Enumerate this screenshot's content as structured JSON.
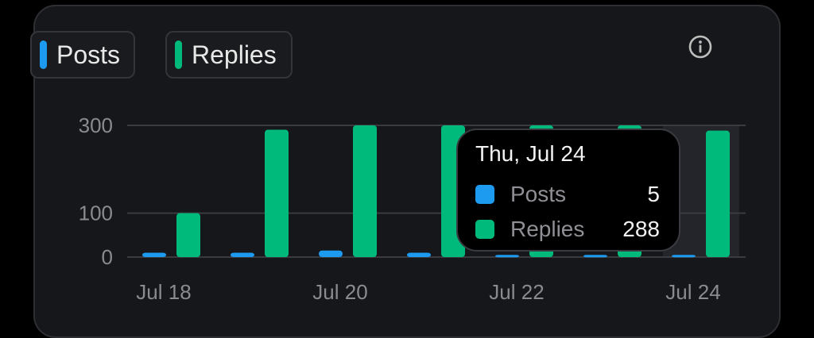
{
  "legend": {
    "posts_label": "Posts",
    "replies_label": "Replies"
  },
  "icons": {
    "info": "info-icon"
  },
  "colors": {
    "posts": "#1d9bf0",
    "replies": "#00ba7c",
    "grid": "#3a3b40",
    "axis_text": "#8a8b90"
  },
  "tooltip": {
    "title": "Thu, Jul 24",
    "posts_label": "Posts",
    "posts_value": "5",
    "replies_label": "Replies",
    "replies_value": "288"
  },
  "chart_data": {
    "type": "bar",
    "categories": [
      "Jul 18",
      "Jul 19",
      "Jul 20",
      "Jul 21",
      "Jul 22",
      "Jul 23",
      "Jul 24"
    ],
    "x_tick_labels": [
      "Jul 18",
      "Jul 20",
      "Jul 22",
      "Jul 24"
    ],
    "series": [
      {
        "name": "Posts",
        "values": [
          10,
          10,
          15,
          10,
          5,
          5,
          5
        ]
      },
      {
        "name": "Replies",
        "values": [
          100,
          290,
          300,
          300,
          300,
          300,
          288
        ]
      }
    ],
    "yticks": [
      0,
      100,
      300
    ],
    "ylim": [
      0,
      300
    ],
    "grid": true,
    "legend_position": "top-left",
    "highlighted_category": "Jul 24"
  }
}
